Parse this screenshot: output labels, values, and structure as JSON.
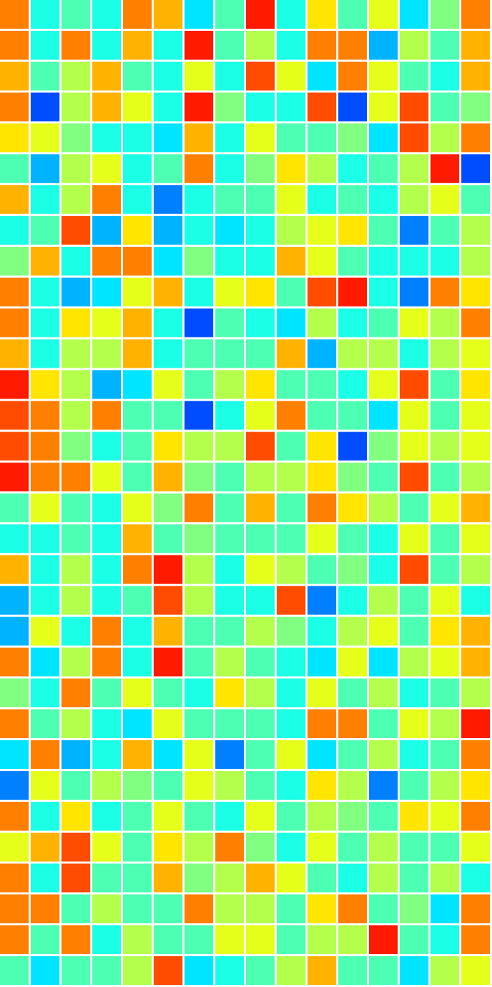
{
  "chart_data": {
    "type": "heatmap_grid",
    "tick_labels": false,
    "zlim": [
      0,
      1
    ],
    "cells": [
      [
        0.75,
        0.4,
        0.45,
        0.4,
        0.75,
        0.7,
        0.35,
        0.45,
        0.85,
        0.4,
        0.65,
        0.45,
        0.6,
        0.35,
        0.5,
        0.75
      ],
      [
        0.75,
        0.4,
        0.75,
        0.4,
        0.7,
        0.4,
        0.85,
        0.45,
        0.55,
        0.4,
        0.75,
        0.75,
        0.3,
        0.55,
        0.45,
        0.7
      ],
      [
        0.7,
        0.45,
        0.55,
        0.7,
        0.45,
        0.4,
        0.6,
        0.4,
        0.8,
        0.6,
        0.35,
        0.75,
        0.6,
        0.45,
        0.4,
        0.7
      ],
      [
        0.75,
        0.2,
        0.55,
        0.7,
        0.6,
        0.4,
        0.85,
        0.5,
        0.4,
        0.4,
        0.8,
        0.2,
        0.6,
        0.8,
        0.45,
        0.5
      ],
      [
        0.65,
        0.6,
        0.5,
        0.4,
        0.4,
        0.35,
        0.7,
        0.4,
        0.6,
        0.45,
        0.45,
        0.5,
        0.35,
        0.8,
        0.55,
        0.75
      ],
      [
        0.45,
        0.3,
        0.55,
        0.6,
        0.4,
        0.45,
        0.75,
        0.4,
        0.5,
        0.65,
        0.55,
        0.4,
        0.45,
        0.55,
        0.85,
        0.2
      ],
      [
        0.7,
        0.4,
        0.55,
        0.75,
        0.4,
        0.25,
        0.4,
        0.45,
        0.45,
        0.6,
        0.4,
        0.45,
        0.4,
        0.55,
        0.6,
        0.45
      ],
      [
        0.4,
        0.45,
        0.8,
        0.3,
        0.65,
        0.3,
        0.4,
        0.35,
        0.4,
        0.55,
        0.6,
        0.65,
        0.45,
        0.25,
        0.45,
        0.55
      ],
      [
        0.5,
        0.7,
        0.4,
        0.75,
        0.75,
        0.35,
        0.5,
        0.4,
        0.4,
        0.7,
        0.6,
        0.45,
        0.4,
        0.4,
        0.4,
        0.55
      ],
      [
        0.75,
        0.4,
        0.3,
        0.35,
        0.6,
        0.7,
        0.4,
        0.6,
        0.65,
        0.45,
        0.8,
        0.85,
        0.4,
        0.25,
        0.75,
        0.65
      ],
      [
        0.75,
        0.4,
        0.65,
        0.6,
        0.7,
        0.4,
        0.2,
        0.45,
        0.4,
        0.35,
        0.55,
        0.4,
        0.45,
        0.6,
        0.55,
        0.75
      ],
      [
        0.7,
        0.4,
        0.55,
        0.55,
        0.7,
        0.4,
        0.45,
        0.45,
        0.45,
        0.7,
        0.3,
        0.55,
        0.55,
        0.4,
        0.55,
        0.6
      ],
      [
        0.85,
        0.65,
        0.55,
        0.3,
        0.35,
        0.6,
        0.45,
        0.55,
        0.65,
        0.45,
        0.45,
        0.4,
        0.6,
        0.8,
        0.45,
        0.65
      ],
      [
        0.8,
        0.75,
        0.55,
        0.75,
        0.45,
        0.45,
        0.2,
        0.4,
        0.6,
        0.75,
        0.45,
        0.45,
        0.35,
        0.6,
        0.45,
        0.6
      ],
      [
        0.8,
        0.75,
        0.5,
        0.4,
        0.45,
        0.65,
        0.55,
        0.55,
        0.8,
        0.45,
        0.65,
        0.2,
        0.5,
        0.6,
        0.55,
        0.6
      ],
      [
        0.85,
        0.75,
        0.75,
        0.6,
        0.45,
        0.7,
        0.5,
        0.45,
        0.55,
        0.55,
        0.65,
        0.5,
        0.45,
        0.8,
        0.45,
        0.55
      ],
      [
        0.45,
        0.6,
        0.45,
        0.4,
        0.6,
        0.5,
        0.75,
        0.45,
        0.7,
        0.45,
        0.75,
        0.65,
        0.55,
        0.45,
        0.6,
        0.7
      ],
      [
        0.4,
        0.4,
        0.45,
        0.4,
        0.7,
        0.45,
        0.5,
        0.45,
        0.45,
        0.45,
        0.6,
        0.45,
        0.4,
        0.6,
        0.45,
        0.6
      ],
      [
        0.7,
        0.4,
        0.55,
        0.4,
        0.75,
        0.85,
        0.55,
        0.4,
        0.6,
        0.55,
        0.45,
        0.5,
        0.4,
        0.8,
        0.45,
        0.55
      ],
      [
        0.3,
        0.4,
        0.55,
        0.4,
        0.45,
        0.8,
        0.55,
        0.4,
        0.4,
        0.8,
        0.25,
        0.4,
        0.55,
        0.45,
        0.6,
        0.4
      ],
      [
        0.3,
        0.6,
        0.4,
        0.75,
        0.4,
        0.7,
        0.45,
        0.45,
        0.55,
        0.5,
        0.4,
        0.55,
        0.6,
        0.45,
        0.65,
        0.7
      ],
      [
        0.75,
        0.35,
        0.55,
        0.75,
        0.4,
        0.85,
        0.45,
        0.55,
        0.45,
        0.4,
        0.35,
        0.6,
        0.35,
        0.55,
        0.6,
        0.7
      ],
      [
        0.5,
        0.4,
        0.75,
        0.45,
        0.6,
        0.45,
        0.4,
        0.65,
        0.55,
        0.4,
        0.6,
        0.45,
        0.55,
        0.4,
        0.45,
        0.55
      ],
      [
        0.75,
        0.45,
        0.55,
        0.4,
        0.35,
        0.6,
        0.45,
        0.45,
        0.45,
        0.4,
        0.75,
        0.75,
        0.45,
        0.6,
        0.55,
        0.85
      ],
      [
        0.35,
        0.75,
        0.3,
        0.4,
        0.7,
        0.35,
        0.6,
        0.25,
        0.45,
        0.6,
        0.35,
        0.45,
        0.55,
        0.4,
        0.45,
        0.75
      ],
      [
        0.25,
        0.6,
        0.45,
        0.55,
        0.5,
        0.45,
        0.6,
        0.55,
        0.45,
        0.4,
        0.65,
        0.55,
        0.25,
        0.45,
        0.55,
        0.65
      ],
      [
        0.75,
        0.4,
        0.65,
        0.4,
        0.45,
        0.6,
        0.45,
        0.4,
        0.6,
        0.45,
        0.55,
        0.5,
        0.45,
        0.65,
        0.6,
        0.75
      ],
      [
        0.6,
        0.7,
        0.8,
        0.6,
        0.45,
        0.65,
        0.55,
        0.75,
        0.5,
        0.4,
        0.6,
        0.45,
        0.55,
        0.45,
        0.45,
        0.6
      ],
      [
        0.75,
        0.4,
        0.8,
        0.45,
        0.45,
        0.7,
        0.5,
        0.55,
        0.7,
        0.6,
        0.45,
        0.4,
        0.55,
        0.45,
        0.55,
        0.4
      ],
      [
        0.75,
        0.75,
        0.45,
        0.55,
        0.45,
        0.45,
        0.75,
        0.55,
        0.55,
        0.45,
        0.65,
        0.75,
        0.45,
        0.5,
        0.35,
        0.75
      ],
      [
        0.75,
        0.45,
        0.75,
        0.4,
        0.55,
        0.45,
        0.45,
        0.6,
        0.6,
        0.45,
        0.55,
        0.55,
        0.85,
        0.45,
        0.4,
        0.75
      ],
      [
        0.45,
        0.35,
        0.45,
        0.45,
        0.55,
        0.8,
        0.35,
        0.4,
        0.45,
        0.55,
        0.7,
        0.45,
        0.45,
        0.35,
        0.55,
        0.6
      ]
    ]
  }
}
